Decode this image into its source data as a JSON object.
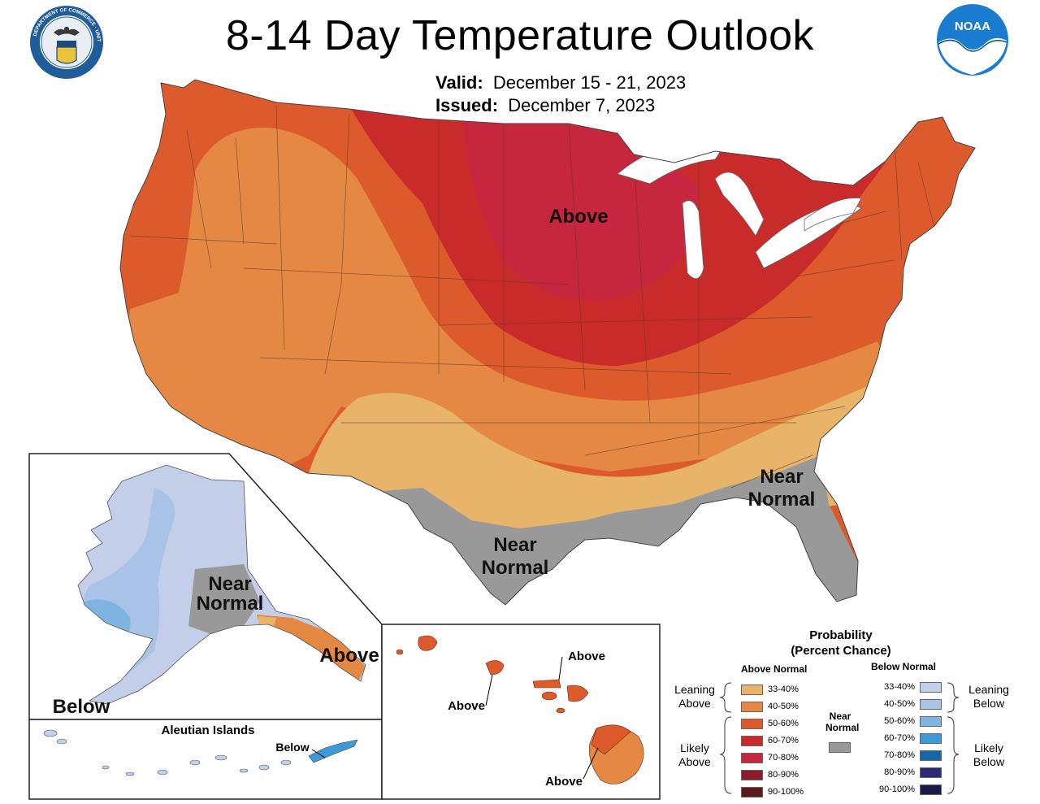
{
  "title": "8-14 Day Temperature Outlook",
  "valid_label": "Valid:",
  "valid_dates": "December 15 - 21, 2023",
  "issued_label": "Issued:",
  "issued_date": "December 7, 2023",
  "seal_text": "DEPARTMENT OF COMMERCE · UNITED STATES OF AMERICA",
  "noaa_text": "NOAA",
  "labels": {
    "conus_above": "Above",
    "conus_near_sw_1": "Near",
    "conus_near_sw_2": "Normal",
    "conus_near_se_1": "Near",
    "conus_near_se_2": "Normal",
    "ak_near_1": "Near",
    "ak_near_2": "Normal",
    "ak_above": "Above",
    "ak_below": "Below",
    "aleutian_title": "Aleutian Islands",
    "aleutian_below": "Below",
    "hi_above_1": "Above",
    "hi_above_2": "Above",
    "hi_above_3": "Above"
  },
  "legend": {
    "title_1": "Probability",
    "title_2": "(Percent Chance)",
    "above_head": "Above Normal",
    "below_head": "Below Normal",
    "near_head_1": "Near",
    "near_head_2": "Normal",
    "leaning_above_1": "Leaning",
    "leaning_above_2": "Above",
    "likely_above_1": "Likely",
    "likely_above_2": "Above",
    "leaning_below_1": "Leaning",
    "leaning_below_2": "Below",
    "likely_below_1": "Likely",
    "likely_below_2": "Below",
    "above": [
      {
        "range": "33-40%",
        "color": "#e8b46a"
      },
      {
        "range": "40-50%",
        "color": "#e48843"
      },
      {
        "range": "50-60%",
        "color": "#dc5a2c"
      },
      {
        "range": "60-70%",
        "color": "#c92a2a"
      },
      {
        "range": "70-80%",
        "color": "#c6263e"
      },
      {
        "range": "80-90%",
        "color": "#8c1c2a"
      },
      {
        "range": "90-100%",
        "color": "#5a1a1a"
      }
    ],
    "below": [
      {
        "range": "33-40%",
        "color": "#c3cfe8"
      },
      {
        "range": "40-50%",
        "color": "#a9c3e6"
      },
      {
        "range": "50-60%",
        "color": "#7eb3e2"
      },
      {
        "range": "60-70%",
        "color": "#3d9ad6"
      },
      {
        "range": "70-80%",
        "color": "#1467a8"
      },
      {
        "range": "80-90%",
        "color": "#2a2a78"
      },
      {
        "range": "90-100%",
        "color": "#1a1a4a"
      }
    ],
    "near_color": "#999999"
  }
}
